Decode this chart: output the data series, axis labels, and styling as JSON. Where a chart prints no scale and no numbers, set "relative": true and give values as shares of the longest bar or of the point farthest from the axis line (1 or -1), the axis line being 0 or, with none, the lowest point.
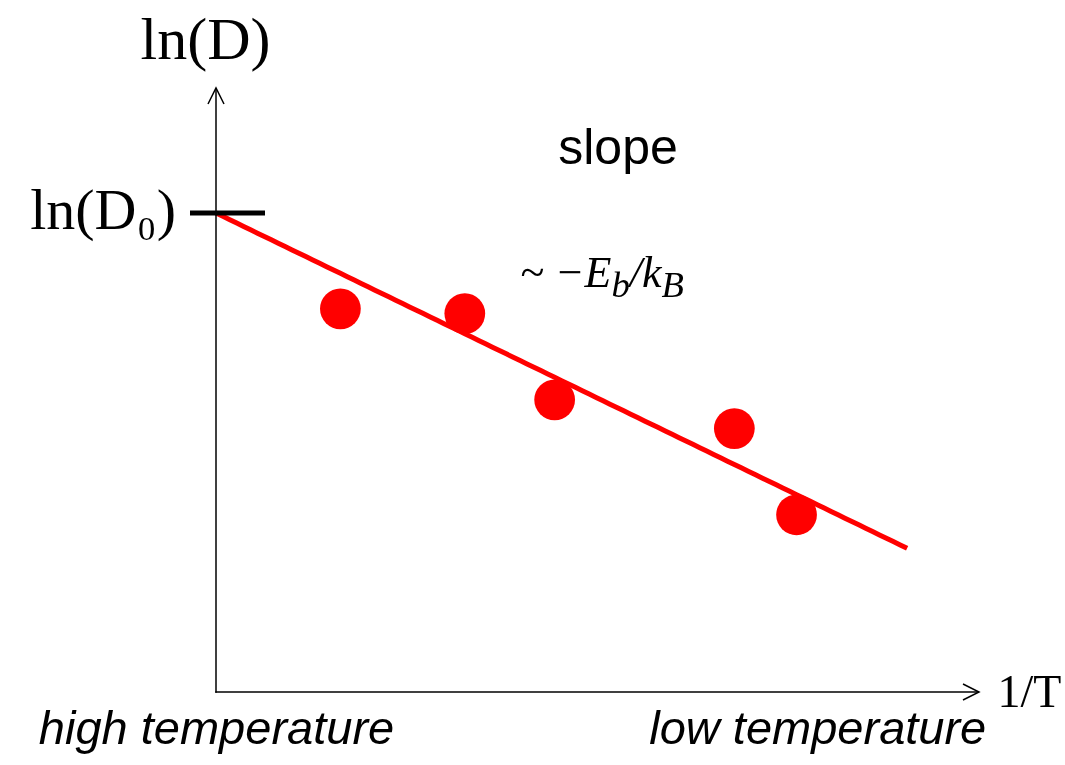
{
  "chart_data": {
    "type": "scatter",
    "xlabel": "1/T",
    "ylabel": "ln(D)",
    "relative": true,
    "marker": "circle",
    "categories": [
      "high temperature",
      null,
      null,
      null,
      null,
      null,
      null,
      null,
      null,
      null,
      null,
      null,
      null,
      null,
      null,
      null,
      null,
      null,
      null,
      null,
      null,
      null,
      null,
      null,
      null,
      null,
      null,
      null,
      null,
      null,
      null,
      null,
      null,
      null,
      null,
      null,
      null,
      null,
      null,
      null,
      null,
      null,
      null,
      null,
      null,
      null,
      null,
      null,
      null,
      null,
      null,
      null,
      null,
      null,
      null,
      null,
      null,
      null,
      null,
      null,
      null,
      null,
      null,
      null,
      null,
      null,
      null,
      null,
      null,
      null,
      null,
      null,
      null,
      null,
      null,
      null,
      null,
      null,
      null,
      null,
      null,
      null,
      null,
      null,
      null,
      null,
      null,
      "low temperature",
      null,
      null,
      null,
      null,
      null,
      null,
      null,
      null,
      null,
      null,
      null,
      null,
      null
    ],
    "series": [
      {
        "color": "#ff0000",
        "values": [
          null,
          null,
          null,
          null,
          null,
          null,
          null,
          null,
          null,
          null,
          null,
          null,
          null,
          null,
          null,
          null,
          null,
          null,
          0.8,
          null,
          null,
          null,
          null,
          null,
          null,
          null,
          null,
          null,
          null,
          null,
          null,
          null,
          null,
          null,
          null,
          null,
          0.79,
          null,
          null,
          null,
          null,
          null,
          null,
          null,
          null,
          null,
          null,
          null,
          null,
          0.61,
          null,
          null,
          null,
          null,
          null,
          null,
          null,
          null,
          null,
          null,
          null,
          null,
          null,
          null,
          null,
          null,
          null,
          null,
          null,
          null,
          null,
          null,
          null,
          null,
          null,
          0.55,
          null,
          null,
          null,
          null,
          null,
          null,
          null,
          null,
          0.37,
          null,
          null,
          null,
          null,
          null,
          null,
          null,
          null,
          null,
          null,
          null,
          null,
          null,
          null,
          null,
          null
        ]
      },
      {
        "type": "line",
        "color": "#ff0000",
        "marker": "none",
        "values": [
          1,
          0.993,
          0.986,
          0.979,
          0.972,
          0.965,
          0.958,
          0.951,
          0.944,
          0.937,
          0.93,
          0.923,
          0.916,
          0.909,
          0.902,
          0.895,
          0.888,
          0.881,
          0.874,
          0.867,
          0.86,
          0.853,
          0.846,
          0.839,
          0.832,
          0.825,
          0.818,
          0.811,
          0.804,
          0.797,
          0.79,
          0.783,
          0.776,
          0.769,
          0.762,
          0.755,
          0.748,
          0.741,
          0.734,
          0.727,
          0.72,
          0.713,
          0.706,
          0.699,
          0.692,
          0.685,
          0.678,
          0.671,
          0.664,
          0.657,
          0.65,
          0.643,
          0.636,
          0.629,
          0.622,
          0.615,
          0.608,
          0.601,
          0.594,
          0.587,
          0.58,
          0.573,
          0.566,
          0.559,
          0.552,
          0.545,
          0.538,
          0.531,
          0.524,
          0.517,
          0.51,
          0.503,
          0.496,
          0.489,
          0.482,
          0.475,
          0.468,
          0.461,
          0.454,
          0.447,
          0.44,
          0.433,
          0.426,
          0.419,
          0.412,
          0.405,
          0.398,
          0.391,
          0.384,
          0.377,
          0.37,
          0.363,
          0.356,
          0.349,
          0.342,
          0.335,
          0.328,
          0.321,
          0.314,
          0.307,
          0.3
        ]
      }
    ],
    "annotations": [
      "ln(D₀)",
      "slope",
      "~ −E$_{b}$/k$_{B}$"
    ]
  }
}
